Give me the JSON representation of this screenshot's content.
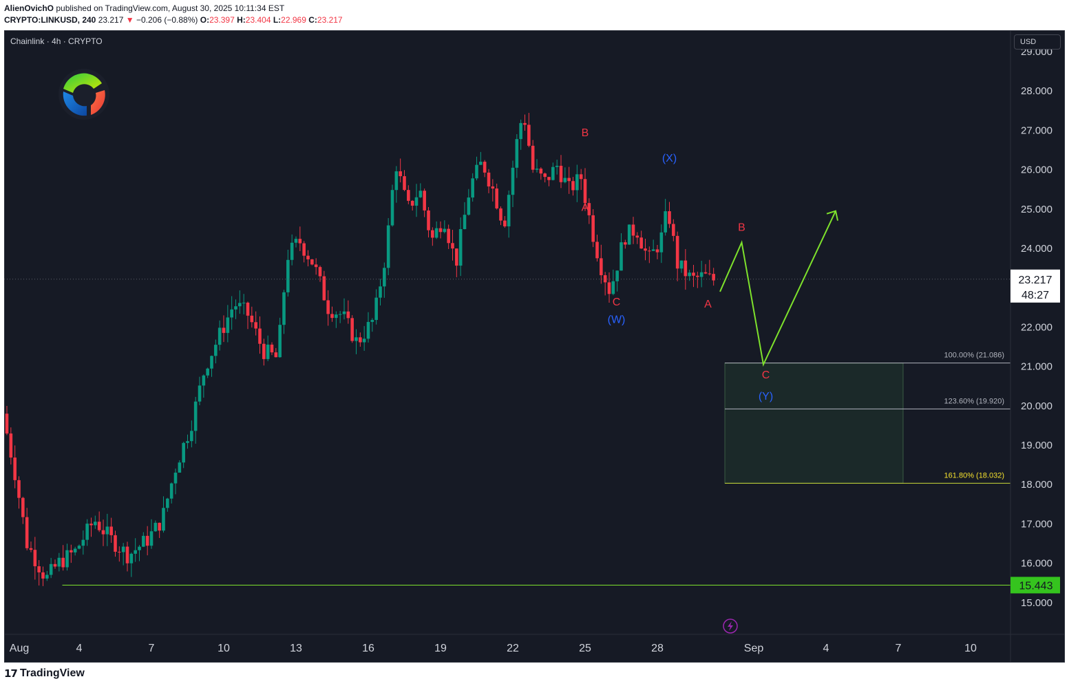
{
  "header": {
    "publisher": "AlienOvichO",
    "published_text": "published on TradingView.com, August 30, 2025 10:11:34 EST",
    "symbol_line": "CRYPTO:LINKUSD, 240",
    "last": "23.217",
    "change": "−0.206 (−0.88%)",
    "open_label": "O:",
    "open": "23.397",
    "high_label": "H:",
    "high": "23.404",
    "low_label": "L:",
    "low": "22.969",
    "close_label": "C:",
    "close": "23.217"
  },
  "legend": "Chainlink · 4h · CRYPTO",
  "currency": "USD",
  "footer": {
    "brand": "TradingView"
  },
  "colors": {
    "up": "#089981",
    "down": "#f23645",
    "projection": "#7ee22c",
    "wave_red": "#f23645",
    "wave_blue": "#2962ff",
    "background": "#161a25",
    "fib_label_yellow": "#f5e12e"
  },
  "chart_data": {
    "type": "candlestick",
    "instrument": "CRYPTO:LINKUSD",
    "timeframe": "4h",
    "ylim": [
      14.2,
      29.5
    ],
    "y_ticks": [
      "15.000",
      "16.000",
      "17.000",
      "18.000",
      "19.000",
      "20.000",
      "21.000",
      "22.000",
      "23.000",
      "24.000",
      "25.000",
      "26.000",
      "27.000",
      "28.000",
      "29.000"
    ],
    "x_ticks": [
      {
        "label": "Aug",
        "day": 1
      },
      {
        "label": "4",
        "day": 4
      },
      {
        "label": "7",
        "day": 7
      },
      {
        "label": "10",
        "day": 10
      },
      {
        "label": "13",
        "day": 13
      },
      {
        "label": "16",
        "day": 16
      },
      {
        "label": "19",
        "day": 19
      },
      {
        "label": "22",
        "day": 22
      },
      {
        "label": "25",
        "day": 25
      },
      {
        "label": "28",
        "day": 28
      },
      {
        "label": "Sep",
        "day": 32
      },
      {
        "label": "4",
        "day": 35
      },
      {
        "label": "7",
        "day": 38
      },
      {
        "label": "10",
        "day": 41
      }
    ],
    "xlim_days": [
      1,
      42.1
    ],
    "price_path": [
      [
        1.0,
        19.8
      ],
      [
        1.5,
        18.3
      ],
      [
        2.0,
        16.5
      ],
      [
        2.8,
        15.6
      ],
      [
        3.3,
        16.0
      ],
      [
        4.0,
        16.3
      ],
      [
        4.8,
        17.1
      ],
      [
        5.5,
        16.6
      ],
      [
        6.2,
        16.2
      ],
      [
        7.0,
        16.6
      ],
      [
        7.6,
        17.1
      ],
      [
        8.2,
        18.5
      ],
      [
        8.8,
        19.5
      ],
      [
        9.4,
        21.0
      ],
      [
        10.0,
        21.8
      ],
      [
        10.6,
        22.6
      ],
      [
        11.2,
        22.3
      ],
      [
        11.8,
        21.4
      ],
      [
        12.4,
        21.2
      ],
      [
        12.8,
        23.8
      ],
      [
        13.3,
        24.2
      ],
      [
        13.9,
        23.6
      ],
      [
        14.5,
        22.5
      ],
      [
        15.1,
        22.3
      ],
      [
        15.7,
        21.6
      ],
      [
        16.4,
        22.2
      ],
      [
        16.9,
        23.9
      ],
      [
        17.3,
        26.2
      ],
      [
        17.8,
        25.0
      ],
      [
        18.3,
        25.5
      ],
      [
        18.8,
        24.2
      ],
      [
        19.3,
        24.8
      ],
      [
        19.8,
        23.6
      ],
      [
        20.4,
        25.6
      ],
      [
        20.9,
        26.2
      ],
      [
        21.4,
        25.4
      ],
      [
        21.8,
        24.6
      ],
      [
        22.3,
        26.6
      ],
      [
        22.6,
        27.5
      ],
      [
        23.0,
        26.0
      ],
      [
        23.5,
        25.7
      ],
      [
        24.0,
        26.1
      ],
      [
        24.5,
        25.5
      ],
      [
        25.0,
        25.8
      ],
      [
        25.4,
        24.6
      ],
      [
        25.8,
        23.6
      ],
      [
        26.2,
        22.9
      ],
      [
        26.8,
        24.3
      ],
      [
        27.3,
        24.5
      ],
      [
        27.8,
        23.7
      ],
      [
        28.3,
        24.2
      ],
      [
        28.6,
        25.0
      ],
      [
        29.0,
        23.6
      ],
      [
        29.6,
        23.2
      ],
      [
        30.1,
        23.3
      ],
      [
        30.4,
        23.2
      ]
    ],
    "horizontal_line": {
      "price": 15.443,
      "label": "15.443",
      "from_day": 3.3
    },
    "current_price": {
      "price": 23.217,
      "label": "23.217",
      "countdown": "48:27"
    },
    "fib_levels": [
      {
        "label": "100.00% (21.086)",
        "price": 21.086
      },
      {
        "label": "123.60% (19.920)",
        "price": 19.92
      },
      {
        "label": "161.80% (18.032)",
        "price": 18.032
      }
    ],
    "target_zone": {
      "from_price": 21.086,
      "to_price": 18.032,
      "from_day": 30.8,
      "to_day": 38.2
    },
    "projection_path": [
      [
        30.6,
        22.9
      ],
      [
        31.5,
        24.15
      ],
      [
        32.4,
        21.05
      ],
      [
        35.4,
        24.95
      ]
    ],
    "projection_arrowhead": {
      "day": 35.4,
      "price": 24.95
    },
    "wave_labels": [
      {
        "text": "B",
        "day": 25.0,
        "price": 26.85,
        "color": "red"
      },
      {
        "text": "A",
        "day": 25.0,
        "price": 24.95,
        "color": "red"
      },
      {
        "text": "(X)",
        "day": 28.5,
        "price": 26.2,
        "color": "blue"
      },
      {
        "text": "C",
        "day": 26.3,
        "price": 22.55,
        "color": "red"
      },
      {
        "text": "(W)",
        "day": 26.3,
        "price": 22.1,
        "color": "blue"
      },
      {
        "text": "A",
        "day": 30.1,
        "price": 22.5,
        "color": "red"
      },
      {
        "text": "B",
        "day": 31.5,
        "price": 24.45,
        "color": "red"
      },
      {
        "text": "C",
        "day": 32.5,
        "price": 20.7,
        "color": "red"
      },
      {
        "text": "(Y)",
        "day": 32.5,
        "price": 20.15,
        "color": "blue"
      }
    ]
  }
}
